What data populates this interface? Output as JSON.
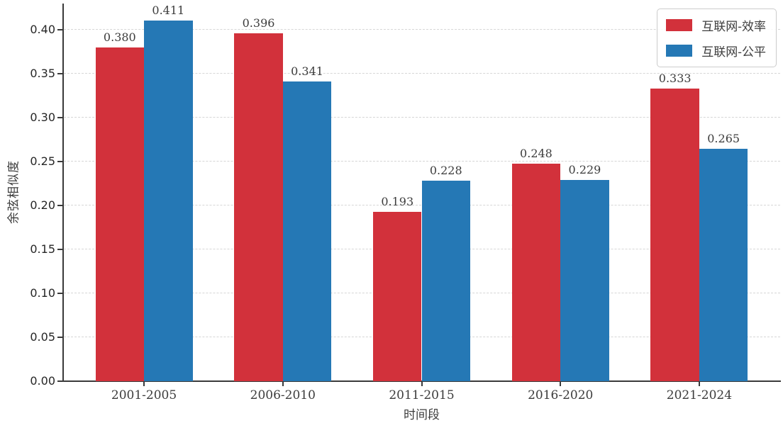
{
  "chart_data": {
    "type": "bar",
    "title": "",
    "categories": [
      "2001-2005",
      "2006-2010",
      "2011-2015",
      "2016-2020",
      "2021-2024"
    ],
    "series": [
      {
        "name": "互联网-效率",
        "color": "#d2313b",
        "values": [
          0.38,
          0.396,
          0.193,
          0.248,
          0.333
        ],
        "labels": [
          "0.380",
          "0.396",
          "0.193",
          "0.248",
          "0.333"
        ]
      },
      {
        "name": "互联网-公平",
        "color": "#2578b5",
        "values": [
          0.411,
          0.341,
          0.228,
          0.229,
          0.265
        ],
        "labels": [
          "0.411",
          "0.341",
          "0.228",
          "0.229",
          "0.265"
        ]
      }
    ],
    "xlabel": "时间段",
    "ylabel": "余弦相似度",
    "ylim": [
      0,
      0.43
    ],
    "yticks": [
      0.0,
      0.05,
      0.1,
      0.15,
      0.2,
      0.25,
      0.3,
      0.35,
      0.4
    ],
    "ytick_labels": [
      "0.00",
      "0.05",
      "0.10",
      "0.15",
      "0.20",
      "0.25",
      "0.30",
      "0.35",
      "0.40"
    ],
    "grid": "horizontal-dashed",
    "legend_position": "top-right"
  }
}
